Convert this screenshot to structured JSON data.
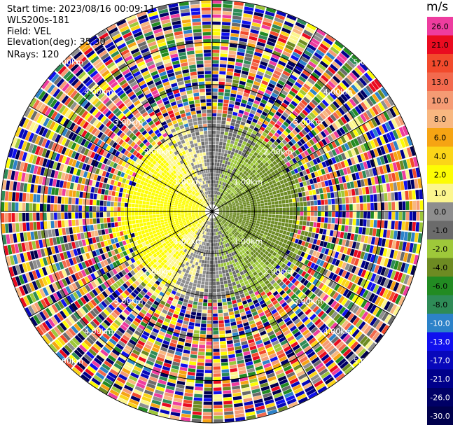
{
  "info": {
    "start_time": "Start time: 2023/08/16 00:09:11",
    "instrument": "WLS200s-181",
    "field": "Field: VEL",
    "elevation": "Elevation(deg): 35.30",
    "nrays": "NRays: 120"
  },
  "colorbar": {
    "unit": "m/s",
    "levels": [
      {
        "label": "26.0",
        "color": "#ee3c9f"
      },
      {
        "label": "21.0",
        "color": "#ea0b20"
      },
      {
        "label": "17.0",
        "color": "#f24a2c"
      },
      {
        "label": "13.0",
        "color": "#f36a4e"
      },
      {
        "label": "10.0",
        "color": "#f59b74"
      },
      {
        "label": "8.0",
        "color": "#f8b780"
      },
      {
        "label": "6.0",
        "color": "#f6a413"
      },
      {
        "label": "4.0",
        "color": "#fbd518"
      },
      {
        "label": "2.0",
        "color": "#fdfc04"
      },
      {
        "label": "1.0",
        "color": "#fcf68e"
      },
      {
        "label": "0.0",
        "color": "#8e8e8e"
      },
      {
        "label": "-1.0",
        "color": "#6b6b6b"
      },
      {
        "label": "-2.0",
        "color": "#9ec83a"
      },
      {
        "label": "-4.0",
        "color": "#6d8b22"
      },
      {
        "label": "-6.0",
        "color": "#228b22"
      },
      {
        "label": "-8.0",
        "color": "#2e8b57"
      },
      {
        "label": "-10.0",
        "color": "#2c82c9"
      },
      {
        "label": "-13.0",
        "color": "#1010ee"
      },
      {
        "label": "-17.0",
        "color": "#0808bb"
      },
      {
        "label": "-21.0",
        "color": "#00008b"
      },
      {
        "label": "-26.0",
        "color": "#000066"
      },
      {
        "label": "-30.0",
        "color": "#00004d"
      }
    ]
  },
  "chart_data": {
    "type": "heatmap",
    "field": "VEL",
    "nrays": 120,
    "elevation_deg": 35.3,
    "range_rings": [
      {
        "label": "1.00km",
        "range_km": 1.0
      },
      {
        "label": "2.00km",
        "range_km": 2.0
      },
      {
        "label": "3.00km",
        "range_km": 3.0
      },
      {
        "label": "4.00km",
        "range_km": 4.0
      },
      {
        "label": "5.00km",
        "range_km": 5.0
      }
    ],
    "max_range_km": 5.0,
    "unit": "m/s",
    "colorbar_range": [
      -30.0,
      26.0
    ]
  }
}
